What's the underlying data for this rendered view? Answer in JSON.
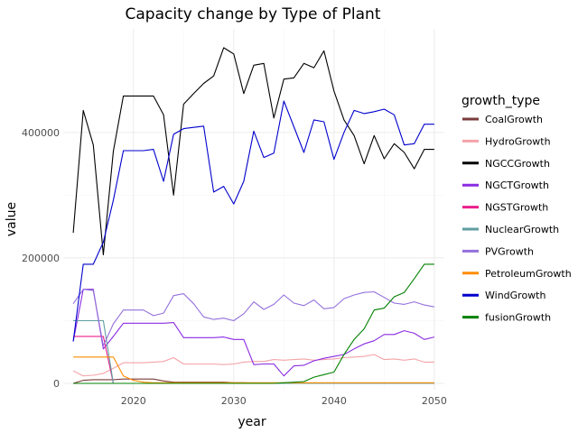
{
  "chart_data": {
    "type": "line",
    "title": "Capacity change by Type of Plant",
    "xlabel": "year",
    "ylabel": "value",
    "xlim": [
      2013,
      2051
    ],
    "ylim": [
      -10000,
      565000
    ],
    "x_ticks": [
      2020,
      2030,
      2040,
      2050
    ],
    "x_tick_labels": [
      "2020",
      "2030",
      "2040",
      "2050"
    ],
    "y_ticks": [
      0,
      200000,
      400000
    ],
    "y_tick_labels": [
      "0",
      "200000",
      "400000"
    ],
    "grid": true,
    "legend": {
      "title": "growth_type",
      "position": "right"
    },
    "x": [
      2014,
      2015,
      2016,
      2017,
      2018,
      2019,
      2020,
      2021,
      2022,
      2023,
      2024,
      2025,
      2026,
      2027,
      2028,
      2029,
      2030,
      2031,
      2032,
      2033,
      2034,
      2035,
      2036,
      2037,
      2038,
      2039,
      2040,
      2041,
      2042,
      2043,
      2044,
      2045,
      2046,
      2047,
      2048,
      2049,
      2050
    ],
    "series": [
      {
        "name": "CoalGrowth",
        "color": "#7b3b3b",
        "values": [
          0,
          5000,
          6000,
          6000,
          6000,
          7000,
          7000,
          7000,
          7000,
          4000,
          2000,
          2000,
          2000,
          2000,
          2000,
          2000,
          1000,
          1000,
          500,
          0,
          0,
          0,
          0,
          0,
          0,
          0,
          0,
          0,
          0,
          0,
          0,
          0,
          0,
          0,
          0,
          0,
          0
        ]
      },
      {
        "name": "HydroGrowth",
        "color": "#f4a3a8",
        "values": [
          20000,
          12000,
          13000,
          16000,
          24000,
          33000,
          33000,
          33000,
          34000,
          35000,
          41000,
          31000,
          31000,
          31000,
          31000,
          30000,
          31000,
          34000,
          35000,
          35000,
          38000,
          37000,
          38000,
          39000,
          37000,
          38000,
          39000,
          41000,
          42000,
          43000,
          46000,
          38000,
          39000,
          37000,
          39000,
          34000,
          34000
        ]
      },
      {
        "name": "NGCCGrowth",
        "color": "#000000",
        "values": [
          240000,
          435000,
          380000,
          205000,
          370000,
          458000,
          458000,
          458000,
          458000,
          428000,
          300000,
          445000,
          462000,
          478000,
          490000,
          535000,
          525000,
          462000,
          507000,
          510000,
          423000,
          485000,
          487000,
          510000,
          503000,
          530000,
          466000,
          420000,
          395000,
          350000,
          395000,
          358000,
          382000,
          368000,
          342000,
          373000,
          373000
        ]
      },
      {
        "name": "NGCTGrowth",
        "color": "#8a2be2",
        "values": [
          67000,
          150000,
          150000,
          55000,
          75000,
          96000,
          96000,
          96000,
          96000,
          96000,
          97000,
          73000,
          73000,
          73000,
          73000,
          74000,
          70000,
          70000,
          30000,
          31000,
          31000,
          12000,
          28000,
          29000,
          36000,
          40000,
          43000,
          46000,
          55000,
          63000,
          68000,
          78000,
          78000,
          84000,
          80000,
          70000,
          74000
        ]
      },
      {
        "name": "NGSTGrowth",
        "color": "#e91e8c",
        "values": [
          75000,
          75000,
          75000,
          75000,
          0,
          0,
          0,
          0,
          0,
          0,
          0,
          0,
          0,
          0,
          0,
          0,
          0,
          0,
          0,
          0,
          0,
          0,
          0,
          0,
          0,
          0,
          0,
          0,
          0,
          0,
          0,
          0,
          0,
          0,
          0,
          0,
          0
        ]
      },
      {
        "name": "NuclearGrowth",
        "color": "#5f9ea0",
        "values": [
          100000,
          100000,
          100000,
          100000,
          0,
          0,
          0,
          0,
          0,
          0,
          0,
          0,
          0,
          0,
          0,
          0,
          0,
          0,
          0,
          0,
          0,
          0,
          0,
          0,
          0,
          0,
          0,
          0,
          0,
          0,
          0,
          0,
          0,
          0,
          0,
          0,
          0
        ]
      },
      {
        "name": "PVGrowth",
        "color": "#9370db",
        "values": [
          127000,
          150000,
          148000,
          60000,
          95000,
          117000,
          117000,
          117000,
          108000,
          112000,
          140000,
          143000,
          127000,
          106000,
          102000,
          104000,
          100000,
          111000,
          130000,
          118000,
          126000,
          141000,
          128000,
          124000,
          133000,
          119000,
          121000,
          135000,
          141000,
          145000,
          146000,
          137000,
          128000,
          126000,
          130000,
          125000,
          122000
        ]
      },
      {
        "name": "PetroleumGrowth",
        "color": "#ff8c00",
        "values": [
          42000,
          42000,
          42000,
          42000,
          42000,
          12000,
          5000,
          2000,
          1000,
          1000,
          1000,
          1000,
          1000,
          1000,
          1000,
          1000,
          1000,
          1000,
          1000,
          1000,
          1000,
          1000,
          1000,
          1000,
          1000,
          1000,
          1000,
          1000,
          1000,
          1000,
          1000,
          1000,
          1000,
          1000,
          1000,
          1000,
          1000
        ]
      },
      {
        "name": "WindGrowth",
        "color": "#0000cd",
        "values": [
          67000,
          190000,
          190000,
          225000,
          292000,
          371000,
          371000,
          371000,
          373000,
          322000,
          397000,
          406000,
          408000,
          410000,
          305000,
          314000,
          286000,
          322000,
          402000,
          360000,
          367000,
          450000,
          409000,
          368000,
          420000,
          417000,
          357000,
          400000,
          435000,
          430000,
          433000,
          437000,
          428000,
          380000,
          382000,
          413000,
          413000
        ]
      },
      {
        "name": "fusionGrowth",
        "color": "#008000",
        "values": [
          0,
          0,
          0,
          0,
          0,
          0,
          0,
          0,
          0,
          0,
          0,
          0,
          0,
          0,
          0,
          0,
          0,
          0,
          0,
          0,
          0,
          1000,
          2000,
          3000,
          10000,
          14000,
          18000,
          46000,
          70000,
          87000,
          117000,
          120000,
          138000,
          145000,
          167000,
          190000,
          190000
        ]
      }
    ]
  }
}
